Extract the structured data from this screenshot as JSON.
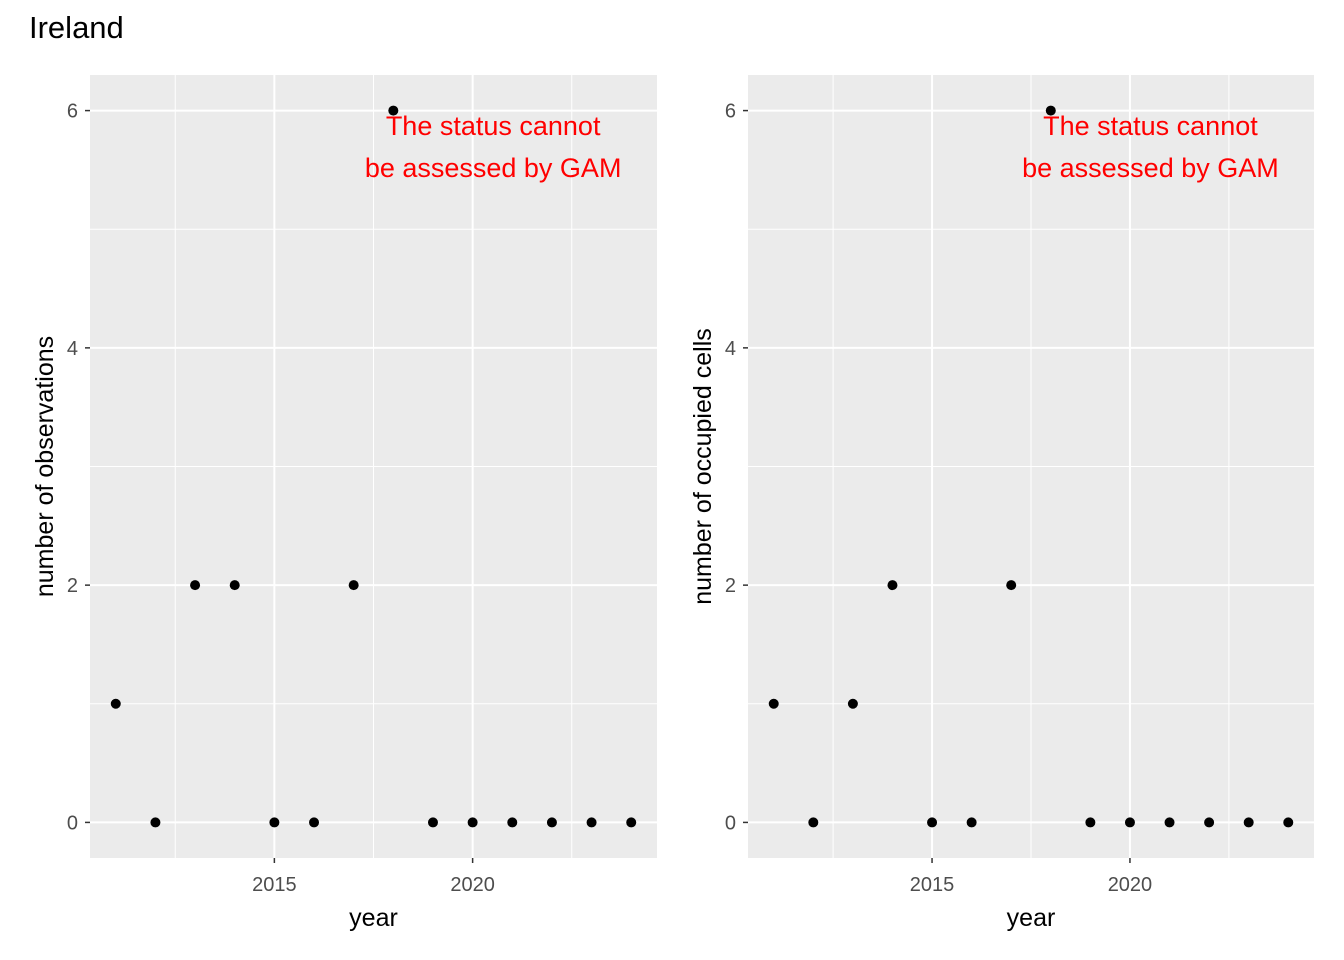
{
  "title": "Ireland",
  "chart_data": [
    {
      "type": "scatter",
      "xlabel": "year",
      "ylabel": "number of observations",
      "x_ticks": [
        2015,
        2020
      ],
      "y_ticks": [
        0,
        2,
        4,
        6
      ],
      "xlim": [
        2010.35,
        2024.65
      ],
      "ylim": [
        -0.3,
        6.3
      ],
      "grid": true,
      "point_color": "#000000",
      "panel_color": "#ebebeb",
      "x": [
        2011,
        2012,
        2013,
        2014,
        2015,
        2016,
        2017,
        2018,
        2019,
        2020,
        2021,
        2022,
        2023,
        2024
      ],
      "y": [
        1,
        0,
        2,
        2,
        0,
        0,
        2,
        6,
        0,
        0,
        0,
        0,
        0,
        0
      ],
      "annotation": [
        "The status cannot",
        "be assessed by GAM"
      ],
      "annotation_color": "#ff0000"
    },
    {
      "type": "scatter",
      "xlabel": "year",
      "ylabel": "number of occupied cells",
      "x_ticks": [
        2015,
        2020
      ],
      "y_ticks": [
        0,
        2,
        4,
        6
      ],
      "xlim": [
        2010.35,
        2024.65
      ],
      "ylim": [
        -0.3,
        6.3
      ],
      "grid": true,
      "point_color": "#000000",
      "panel_color": "#ebebeb",
      "x": [
        2011,
        2012,
        2013,
        2014,
        2015,
        2016,
        2017,
        2018,
        2019,
        2020,
        2021,
        2022,
        2023,
        2024
      ],
      "y": [
        1,
        0,
        1,
        2,
        0,
        0,
        2,
        6,
        0,
        0,
        0,
        0,
        0,
        0
      ],
      "annotation": [
        "The status cannot",
        "be assessed by GAM"
      ],
      "annotation_color": "#ff0000"
    }
  ]
}
